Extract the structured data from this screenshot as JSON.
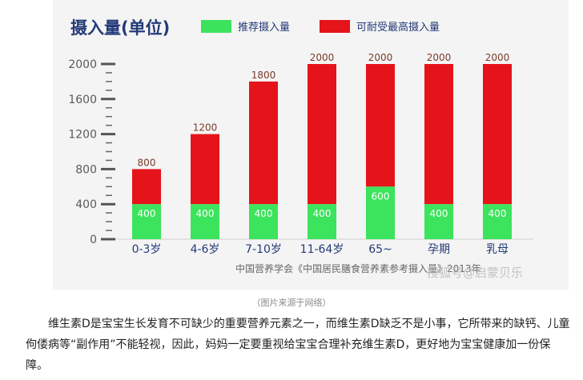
{
  "figure": {
    "caption": "（图片来源于网络）"
  },
  "chart_data": {
    "type": "bar",
    "title": "摄入量(单位)",
    "categories": [
      "0-3岁",
      "4-6岁",
      "7-10岁",
      "11-64岁",
      "65~",
      "孕期",
      "乳母"
    ],
    "series": [
      {
        "name": "推荐摄入量",
        "values": [
          400,
          400,
          400,
          400,
          600,
          400,
          400
        ],
        "color": "#3ce35c"
      },
      {
        "name": "可耐受最高摄入量",
        "values": [
          800,
          1200,
          1800,
          2000,
          2000,
          2000,
          2000
        ],
        "color": "#e5141a"
      }
    ],
    "yticks": [
      0,
      400,
      800,
      1200,
      1600,
      2000
    ],
    "ylim": [
      0,
      2000
    ],
    "xlabel": "",
    "ylabel": "",
    "source_note": "中国营养学会《中国居民膳食营养素参考摄入量》2013年",
    "watermark": "搜狐号@启蒙贝乐",
    "label_color": "#7a3a2a",
    "title_color": "#243a78"
  },
  "article": {
    "paragraph": "维生素D是宝宝生长发育不可缺少的重要营养元素之一，而维生素D缺乏不是小事，它所带来的缺钙、儿童佝偻病等“副作用”不能轻视，因此，妈妈一定要重视给宝宝合理补充维生素D，更好地为宝宝健康加一份保障。"
  }
}
